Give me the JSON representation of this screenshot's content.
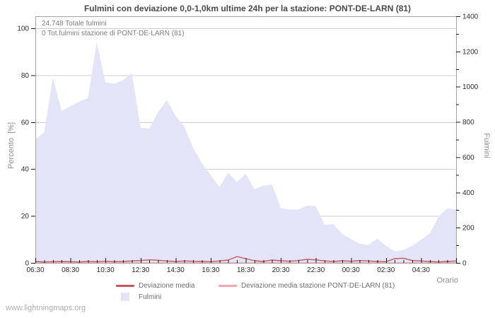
{
  "page": {
    "watermark": "www.lightningmaps.org"
  },
  "chart_data": {
    "type": "area",
    "title": "Fulmini con deviazione 0,0-1,0km ultime 24h per la stazione: PONT-DE-LARN (81)",
    "annotations": {
      "total": "24.748 Totale fulmini",
      "station_total": "0 Tot.fulmini stazione di PONT-DE-LARN (81)"
    },
    "x_axis": {
      "label": "Orario",
      "tick_labels": [
        "06:30",
        "08:30",
        "10:30",
        "12:30",
        "14:30",
        "16:30",
        "18:30",
        "20:30",
        "22:30",
        "00:30",
        "02:30",
        "04:30"
      ],
      "minor_tick_minutes": 30
    },
    "y_left": {
      "label": "Percento  [%]",
      "ticks": [
        0,
        20,
        40,
        60,
        80,
        100
      ],
      "range": [
        0,
        105
      ]
    },
    "y_right": {
      "label": "Fulmini",
      "ticks": [
        0,
        200,
        400,
        600,
        800,
        1000,
        1200,
        1400
      ],
      "minor_step": 100,
      "range": [
        0,
        1400
      ]
    },
    "grid": "horizontal-only",
    "legend_position": "bottom-center",
    "times": [
      "06:30",
      "07:00",
      "07:30",
      "08:00",
      "08:30",
      "09:00",
      "09:30",
      "10:00",
      "10:30",
      "11:00",
      "11:30",
      "12:00",
      "12:30",
      "13:00",
      "13:30",
      "14:00",
      "14:30",
      "15:00",
      "15:30",
      "16:00",
      "16:30",
      "17:00",
      "17:30",
      "18:00",
      "18:30",
      "19:00",
      "19:30",
      "20:00",
      "20:30",
      "21:00",
      "21:30",
      "22:00",
      "22:30",
      "23:00",
      "23:30",
      "00:00",
      "00:30",
      "01:00",
      "01:30",
      "02:00",
      "02:30",
      "03:00",
      "03:30",
      "04:00",
      "04:30",
      "05:00",
      "05:30",
      "06:00",
      "06:30"
    ],
    "series": [
      {
        "name": "Fulmini",
        "kind": "area",
        "axis": "right",
        "color": "#e4e4f8",
        "values": [
          700,
          741,
          1051,
          862,
          889,
          916,
          936,
          1253,
          1024,
          1017,
          1037,
          1078,
          768,
          761,
          855,
          923,
          835,
          774,
          653,
          566,
          498,
          431,
          512,
          458,
          505,
          418,
          438,
          445,
          310,
          303,
          302,
          326,
          321,
          216,
          220,
          164,
          135,
          108,
          102,
          137,
          97,
          65,
          74,
          97,
          131,
          168,
          263,
          310,
          303
        ]
      },
      {
        "name": "Deviazione media",
        "kind": "line",
        "axis": "left",
        "color": "#c9545e",
        "values": [
          0.6,
          0.4,
          0.5,
          0.6,
          0.5,
          0.4,
          0.6,
          0.5,
          0.7,
          0.5,
          0.6,
          0.8,
          1.0,
          1.3,
          1.1,
          0.8,
          0.6,
          0.8,
          0.7,
          0.6,
          0.5,
          0.8,
          1.2,
          2.7,
          1.8,
          0.9,
          0.6,
          1.2,
          0.9,
          0.7,
          1.0,
          1.5,
          1.3,
          0.8,
          0.6,
          0.9,
          0.7,
          1.0,
          0.8,
          0.6,
          0.5,
          1.8,
          2.0,
          1.0,
          0.8,
          0.6,
          0.4,
          0.6,
          0.8
        ]
      },
      {
        "name": "Deviazione media stazione PONT-DE-LARN (81)",
        "kind": "line",
        "axis": "left",
        "color": "#f2a6ae",
        "values": [
          0,
          0,
          0,
          0,
          0,
          0,
          0,
          0,
          0,
          0,
          0,
          0,
          0,
          0,
          0,
          0,
          0,
          0,
          0,
          0,
          0,
          0,
          0,
          0,
          0,
          0,
          0,
          0,
          0,
          0,
          0,
          0,
          0,
          0,
          0,
          0,
          0,
          0,
          0,
          0,
          0,
          0,
          0,
          0,
          0,
          0,
          0,
          0,
          0
        ]
      }
    ],
    "colors": {
      "grid": "#cccccc",
      "frame": "#a3a3a3",
      "tick": "#1a1a1a",
      "tick_label": "#2b2b2b"
    }
  }
}
